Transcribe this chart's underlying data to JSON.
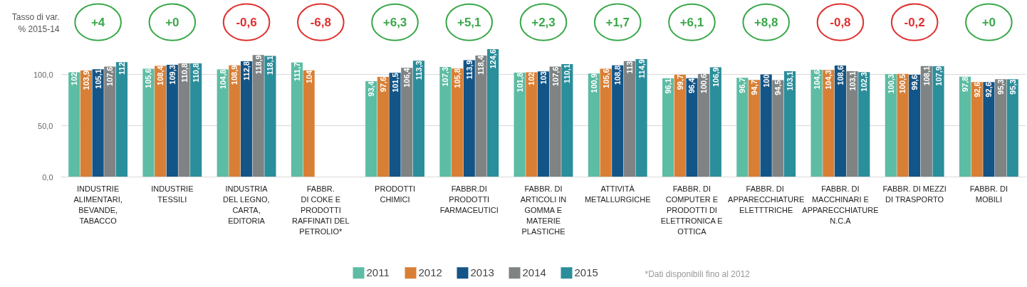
{
  "chart_data": {
    "type": "bar",
    "categories": [
      "INDUSTRIE\nALIMENTARI,\nBEVANDE,\nTABACCO",
      "INDUSTRIE\nTESSILI",
      "INDUSTRIA\nDEL LEGNO,\nCARTA,\nEDITORIA",
      "FABBR.\nDI COKE E\nPRODOTTI\nRAFFINATI DEL\nPETROLIO*",
      "PRODOTTI\nCHIMICI",
      "FABBR.DI\nPRODOTTI\nFARMACEUTICI",
      "FABBR. DI\nARTICOLI IN\nGOMMA E\nMATERIE\nPLASTICHE",
      "ATTIVITÀ\nMETALLURGICHE",
      "FABBR. DI\nCOMPUTER E\nPRODOTTI DI\nELETTRONICA E\nOTTICA",
      "FABBR.  DI\nAPPARECCHIATURE\nELETTTRICHE",
      "FABBR. DI\nMACCHINARI E\nAPPARECCHIATURE\nN.C.A",
      "FABBR. DI MEZZI\nDI TRASPORTO",
      "FABBR. DI\nMOBILI"
    ],
    "series": [
      {
        "name": "2011",
        "color": "#5dbca4",
        "values": [
          102,
          105.6,
          104.8,
          111.7,
          93.4,
          107.3,
          101.8,
          100.9,
          96.1,
          96.7,
          104.6,
          100.3,
          97.8
        ],
        "value_labels": [
          "102",
          "105,6",
          "104,8",
          "111,7",
          "93,4",
          "107,3",
          "101,8",
          "100,9",
          "96,1",
          "96,7",
          "104,6",
          "100,3",
          "97,8"
        ]
      },
      {
        "name": "2012",
        "color": "#d97f35",
        "values": [
          103.9,
          108.4,
          108.9,
          104,
          97.6,
          105.8,
          102,
          105.6,
          99.7,
          94.7,
          104.3,
          100.5,
          92.6
        ],
        "value_labels": [
          "103,9",
          "108,4",
          "108,9",
          "104",
          "97,6",
          "105,8",
          "102",
          "105,6",
          "99,7",
          "94,7",
          "104,3",
          "100,5",
          "92,6"
        ]
      },
      {
        "name": "2013",
        "color": "#135587",
        "values": [
          105.1,
          109.3,
          112.8,
          null,
          101.5,
          113.9,
          103,
          108.8,
          96.4,
          100,
          108.6,
          99.6,
          92.6
        ],
        "value_labels": [
          "105,1",
          "109,3",
          "112,8",
          null,
          "101,5",
          "113,9",
          "103",
          "108,8",
          "96,4",
          "100",
          "108,6",
          "99,6",
          "92,6"
        ]
      },
      {
        "name": "2014",
        "color": "#7f8384",
        "values": [
          107.6,
          110.8,
          118.9,
          null,
          106.4,
          118.4,
          107.6,
          113,
          100.6,
          94.5,
          103.1,
          108.1,
          95.3
        ],
        "value_labels": [
          "107,6",
          "110,8",
          "118,9",
          null,
          "106,4",
          "118,4",
          "107,6",
          "113",
          "100,6",
          "94,5",
          "103,1",
          "108,1",
          "95,3"
        ]
      },
      {
        "name": "2015",
        "color": "#2b8e9b",
        "values": [
          112,
          110.8,
          118.1,
          null,
          113.3,
          124.6,
          110.1,
          114.9,
          106.9,
          103.1,
          102.3,
          107.9,
          95.3
        ],
        "value_labels": [
          "112",
          "110,8",
          "118,1",
          null,
          "113,3",
          "124,6",
          "110,1",
          "114,9",
          "106,9",
          "103,1",
          "102,3",
          "107,9",
          "95,3"
        ]
      }
    ],
    "ylim": [
      0,
      125
    ],
    "yticks": [
      {
        "value": 0,
        "label": "0,0"
      },
      {
        "value": 50,
        "label": "50,0"
      },
      {
        "value": 100,
        "label": "100,0"
      }
    ],
    "grid": "y",
    "legend": "bottom",
    "annotations": [
      "Tasso di var.\n% 2015-14",
      "+4",
      "+0",
      "-0,6",
      "-6,8",
      "+6,3",
      "+5,1",
      "+2,3",
      "+1,7",
      "+6,1",
      "+8,8",
      "-0,8",
      "-0,2",
      "+0",
      "*Dati disponibili fino al 2012"
    ]
  }
}
